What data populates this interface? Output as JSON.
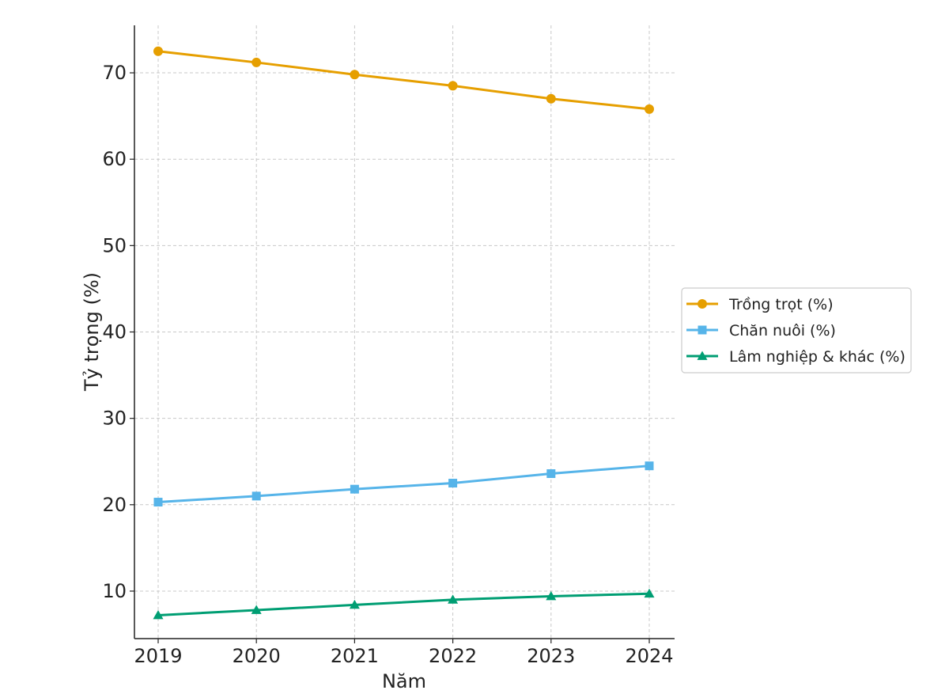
{
  "chart_data": {
    "type": "line",
    "xlabel": "Năm",
    "ylabel": "Tỷ trọng (%)",
    "x": [
      2019,
      2020,
      2021,
      2022,
      2023,
      2024
    ],
    "x_ticks": [
      "2019",
      "2020",
      "2021",
      "2022",
      "2023",
      "2024"
    ],
    "y_ticks": [
      "10",
      "20",
      "30",
      "40",
      "50",
      "60",
      "70"
    ],
    "ylim": [
      4.5,
      75.5
    ],
    "grid": true,
    "legend_position": "right",
    "series": [
      {
        "name": "Trồng trọt (%)",
        "color": "#E69F00",
        "marker": "circle",
        "values": [
          72.5,
          71.2,
          69.8,
          68.5,
          67.0,
          65.8
        ]
      },
      {
        "name": "Chăn nuôi (%)",
        "color": "#56B4E9",
        "marker": "square",
        "values": [
          20.3,
          21.0,
          21.8,
          22.5,
          23.6,
          24.5
        ]
      },
      {
        "name": "Lâm nghiệp & khác (%)",
        "color": "#009E73",
        "marker": "triangle",
        "values": [
          7.2,
          7.8,
          8.4,
          9.0,
          9.4,
          9.7
        ]
      }
    ]
  }
}
